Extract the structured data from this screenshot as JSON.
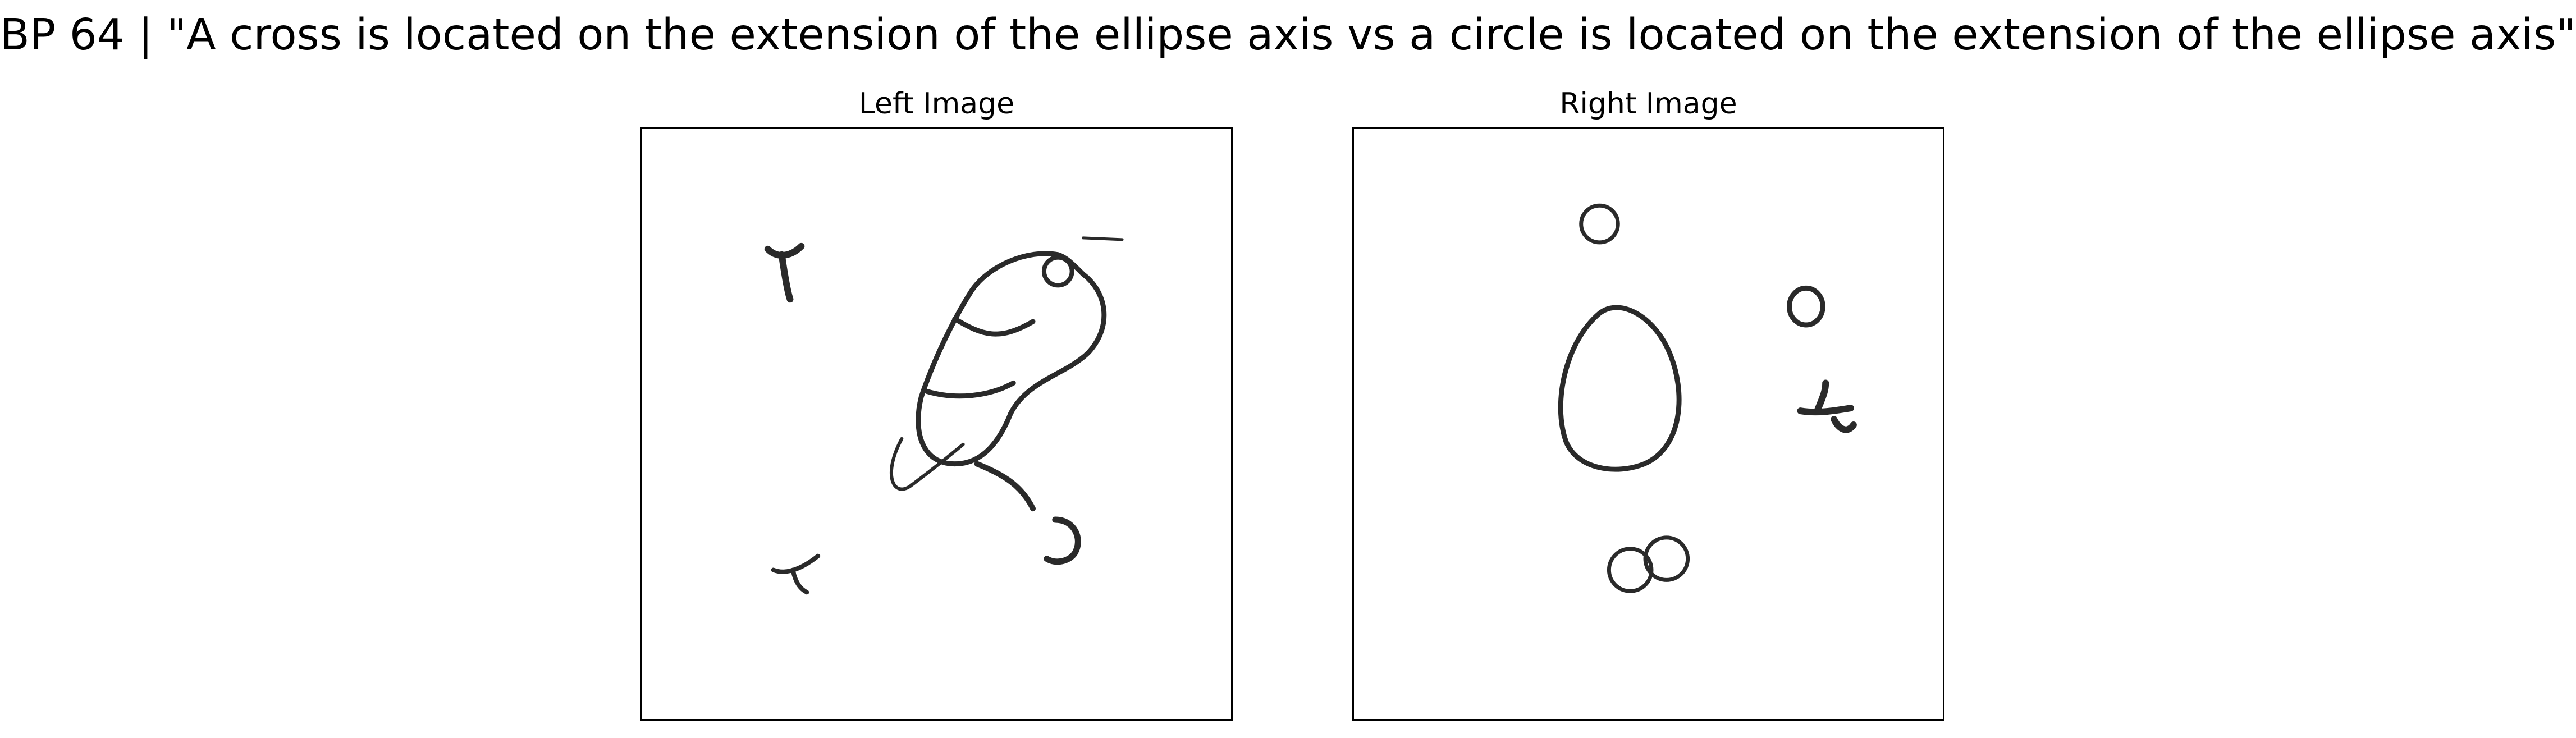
{
  "figure": {
    "title": "BP 64 | \"A cross is located on the extension of the ellipse axis vs a circle is located on the extension of the ellipse axis\""
  },
  "panels": [
    {
      "title": "Left Image"
    },
    {
      "title": "Right Image"
    }
  ],
  "colors": {
    "ink": "#2a2a2a",
    "frame": "#000000",
    "background": "#ffffff"
  }
}
